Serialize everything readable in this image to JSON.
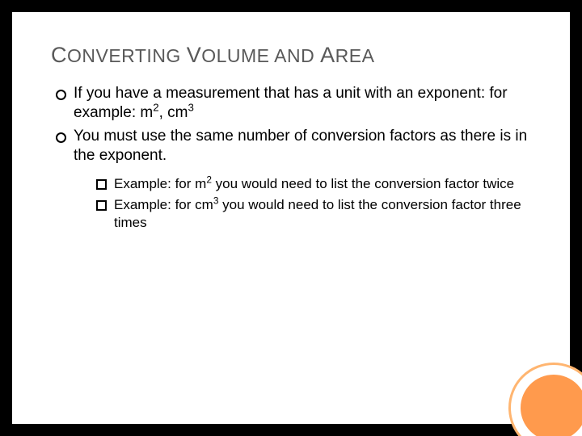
{
  "title": {
    "w1_cap": "C",
    "w1_rest": "ONVERTING ",
    "w2_cap": "V",
    "w2_rest": "OLUME ",
    "w3_rest": "AND ",
    "w4_cap": "A",
    "w4_rest": "REA"
  },
  "bullets": {
    "b1_a": "If you have a measurement that has a unit with an exponent: for example: m",
    "b1_sup1": "2",
    "b1_b": ", cm",
    "b1_sup2": "3",
    "b2": "You must use the same number of conversion factors as there is in the exponent."
  },
  "sub": {
    "s1_a": "Example: for m",
    "s1_sup": "2",
    "s1_b": "  you would need to list the conversion factor twice",
    "s2_a": "Example: for cm",
    "s2_sup": "3",
    "s2_b": "  you would need to list the conversion factor three times"
  },
  "colors": {
    "ring_outer": "#ffb570",
    "ring_inner": "#ff9a4d",
    "title_text": "#595959",
    "body_text": "#000000",
    "slide_bg": "#ffffff",
    "stage_bg": "#000000"
  }
}
